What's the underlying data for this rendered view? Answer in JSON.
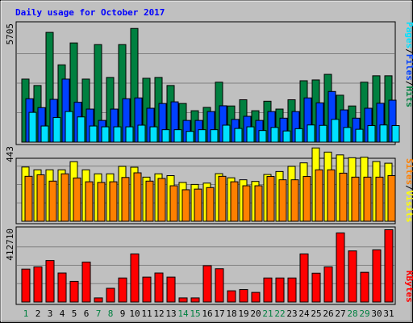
{
  "title": "Daily usage for October 2017",
  "colors": {
    "background": "#c0c0c0",
    "frame": "#000000",
    "grid": "#808080",
    "title": "#0000ff",
    "hits": "#008040",
    "files": "#0040ff",
    "pages": "#00e0ff",
    "visits": "#ffff00",
    "sites": "#ff8000",
    "kbytes": "#ff0000",
    "weekend_day": "#008040",
    "weekday_day": "#000000"
  },
  "chart_data": [
    {
      "type": "bar",
      "title": "Daily usage for October 2017",
      "panel": "hits-files-pages",
      "ylim": [
        0,
        5705
      ],
      "ytick_label": "5705",
      "right_labels": [
        {
          "text": "Hits",
          "color_key": "hits"
        },
        {
          "text": "Files",
          "color_key": "files"
        },
        {
          "text": "Pages",
          "color_key": "pages"
        }
      ],
      "separators": [
        "/",
        "/"
      ],
      "categories": [
        "1",
        "2",
        "3",
        "4",
        "5",
        "6",
        "7",
        "8",
        "9",
        "10",
        "11",
        "12",
        "13",
        "14",
        "15",
        "16",
        "17",
        "18",
        "19",
        "20",
        "21",
        "22",
        "23",
        "24",
        "25",
        "26",
        "27",
        "28",
        "29",
        "30",
        "31"
      ],
      "series": [
        {
          "name": "Hits",
          "color_key": "hits",
          "values": [
            3050,
            2740,
            5310,
            3740,
            4800,
            3050,
            4720,
            3130,
            4720,
            5500,
            3090,
            3130,
            2740,
            1870,
            1520,
            1680,
            2900,
            1750,
            2050,
            1520,
            1980,
            1600,
            2050,
            2970,
            3010,
            3280,
            2270,
            1750,
            2900,
            3210,
            3210
          ]
        },
        {
          "name": "Files",
          "color_key": "files",
          "values": [
            2100,
            1670,
            2070,
            3050,
            1930,
            1600,
            1050,
            1600,
            2100,
            2140,
            1640,
            1870,
            1950,
            1050,
            1050,
            1480,
            1760,
            1100,
            1250,
            1050,
            1480,
            1160,
            1480,
            2140,
            1900,
            2450,
            1560,
            1160,
            1640,
            1880,
            2030
          ]
        },
        {
          "name": "Pages",
          "color_key": "pages",
          "values": [
            1440,
            780,
            1190,
            1480,
            1220,
            780,
            740,
            740,
            740,
            820,
            740,
            600,
            600,
            520,
            600,
            600,
            820,
            660,
            740,
            560,
            710,
            540,
            650,
            830,
            810,
            1100,
            710,
            620,
            800,
            830,
            800
          ]
        }
      ]
    },
    {
      "type": "bar",
      "panel": "visits-sites",
      "ylim": [
        0,
        443
      ],
      "ytick_label": "443",
      "right_labels": [
        {
          "text": "Visits",
          "color_key": "visits"
        },
        {
          "text": "Sites",
          "color_key": "sites"
        }
      ],
      "separators": [
        "/"
      ],
      "categories": [
        "1",
        "2",
        "3",
        "4",
        "5",
        "6",
        "7",
        "8",
        "9",
        "10",
        "11",
        "12",
        "13",
        "14",
        "15",
        "16",
        "17",
        "18",
        "19",
        "20",
        "21",
        "22",
        "23",
        "24",
        "25",
        "26",
        "27",
        "28",
        "29",
        "30",
        "31"
      ],
      "series": [
        {
          "name": "Visits",
          "color_key": "visits",
          "values": [
            327,
            310,
            310,
            310,
            359,
            310,
            286,
            286,
            331,
            326,
            266,
            286,
            275,
            234,
            222,
            230,
            287,
            262,
            250,
            240,
            282,
            300,
            331,
            352,
            442,
            417,
            400,
            383,
            386,
            360,
            350
          ]
        },
        {
          "name": "Sites",
          "color_key": "sites",
          "values": [
            271,
            280,
            242,
            286,
            261,
            238,
            234,
            238,
            264,
            292,
            242,
            258,
            214,
            190,
            194,
            203,
            271,
            238,
            214,
            214,
            270,
            250,
            250,
            270,
            310,
            310,
            290,
            266,
            266,
            266,
            275
          ]
        }
      ]
    },
    {
      "type": "bar",
      "panel": "kbytes",
      "ylim": [
        0,
        412710
      ],
      "ytick_label": "412710",
      "right_labels": [
        {
          "text": "KBytes",
          "color_key": "kbytes"
        }
      ],
      "separators": [],
      "categories": [
        "1",
        "2",
        "3",
        "4",
        "5",
        "6",
        "7",
        "8",
        "9",
        "10",
        "11",
        "12",
        "13",
        "14",
        "15",
        "16",
        "17",
        "18",
        "19",
        "20",
        "21",
        "22",
        "23",
        "24",
        "25",
        "26",
        "27",
        "28",
        "29",
        "30",
        "31"
      ],
      "weekend_days": [
        "1",
        "7",
        "8",
        "14",
        "15",
        "21",
        "22",
        "28",
        "29"
      ],
      "series": [
        {
          "name": "KBytes",
          "color_key": "kbytes",
          "values": [
            185000,
            197000,
            233000,
            163000,
            116000,
            224000,
            23000,
            77000,
            135000,
            270000,
            140000,
            163000,
            140000,
            23000,
            23000,
            204000,
            187000,
            63000,
            70000,
            54000,
            135000,
            135000,
            135000,
            270000,
            162000,
            197000,
            388000,
            287000,
            167000,
            293000,
            406000
          ]
        }
      ]
    }
  ]
}
